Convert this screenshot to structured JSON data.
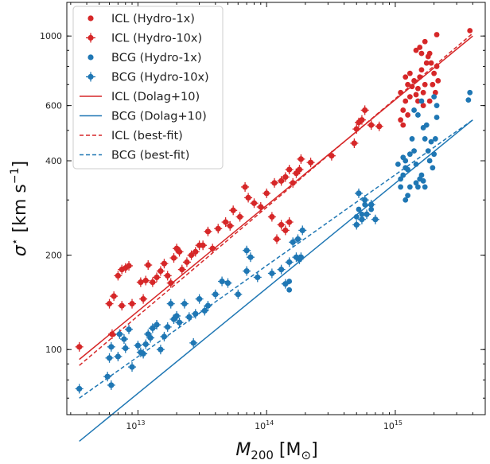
{
  "chart_data": {
    "type": "scatter",
    "x_scale": "log",
    "y_scale": "log",
    "xlim": [
      2800000000000.0,
      5000000000000000.0
    ],
    "ylim": [
      62,
      1280
    ],
    "xlabel": {
      "main": "M",
      "sub": "200",
      "unit_open": " [M",
      "unit_sym": "⊙",
      "unit_close": "]"
    },
    "ylabel": {
      "main": "σ",
      "sup": "⋆",
      "unit": "  [km s",
      "unit_sup": "−1",
      "unit_close": "]"
    },
    "x_ticks": [
      {
        "value": 10000000000000.0,
        "base": "10",
        "exp": "13"
      },
      {
        "value": 100000000000000.0,
        "base": "10",
        "exp": "14"
      },
      {
        "value": 1000000000000000.0,
        "base": "10",
        "exp": "15"
      }
    ],
    "y_ticks": [
      {
        "value": 100,
        "label": "100"
      },
      {
        "value": 200,
        "label": "200"
      },
      {
        "value": 400,
        "label": "400"
      },
      {
        "value": 600,
        "label": "600"
      },
      {
        "value": 1000,
        "label": "1000"
      }
    ],
    "legend_position": "top-left",
    "colors": {
      "icl": "#d62728",
      "bcg": "#1f77b4"
    },
    "series": [
      {
        "name": "ICL (Hydro-1x)",
        "kind": "points",
        "color": "#d62728",
        "points": [
          [
            1100000000000000.0,
            540
          ],
          [
            1150000000000000.0,
            580
          ],
          [
            1200000000000000.0,
            620
          ],
          [
            1100000000000000.0,
            660
          ],
          [
            1250000000000000.0,
            700
          ],
          [
            1300000000000000.0,
            640
          ],
          [
            1350000000000000.0,
            690
          ],
          [
            1400000000000000.0,
            720
          ],
          [
            1450000000000000.0,
            650
          ],
          [
            1500000000000000.0,
            680
          ],
          [
            1550000000000000.0,
            740
          ],
          [
            1600000000000000.0,
            780
          ],
          [
            1650000000000000.0,
            660
          ],
          [
            1700000000000000.0,
            700
          ],
          [
            1750000000000000.0,
            820
          ],
          [
            1800000000000000.0,
            860
          ],
          [
            1850000000000000.0,
            880
          ],
          [
            1900000000000000.0,
            820
          ],
          [
            1950000000000000.0,
            700
          ],
          [
            2000000000000000.0,
            760
          ],
          [
            2050000000000000.0,
            660
          ],
          [
            2100000000000000.0,
            800
          ],
          [
            1550000000000000.0,
            920
          ],
          [
            1600000000000000.0,
            880
          ],
          [
            1700000000000000.0,
            960
          ],
          [
            1450000000000000.0,
            900
          ],
          [
            2100000000000000.0,
            1010
          ],
          [
            3800000000000000.0,
            1040
          ],
          [
            1300000000000000.0,
            760
          ],
          [
            1200000000000000.0,
            740
          ],
          [
            1150000000000000.0,
            520
          ],
          [
            1250000000000000.0,
            560
          ],
          [
            1500000000000000.0,
            620
          ],
          [
            1850000000000000.0,
            620
          ],
          [
            1650000000000000.0,
            600
          ],
          [
            2150000000000000.0,
            720
          ]
        ]
      },
      {
        "name": "ICL (Hydro-10x)",
        "kind": "errorpoints",
        "color": "#d62728",
        "points": [
          [
            3500000000000.0,
            102
          ],
          [
            6000000000000.0,
            140
          ],
          [
            6500000000000.0,
            148
          ],
          [
            6300000000000.0,
            112
          ],
          [
            7500000000000.0,
            138
          ],
          [
            7000000000000.0,
            172
          ],
          [
            7500000000000.0,
            180
          ],
          [
            8000000000000.0,
            182
          ],
          [
            8500000000000.0,
            185
          ],
          [
            9000000000000.0,
            140
          ],
          [
            10500000000000.0,
            164
          ],
          [
            11500000000000.0,
            166
          ],
          [
            11000000000000.0,
            145
          ],
          [
            12000000000000.0,
            186
          ],
          [
            13000000000000.0,
            164
          ],
          [
            14000000000000.0,
            170
          ],
          [
            15000000000000.0,
            178
          ],
          [
            16000000000000.0,
            188
          ],
          [
            17000000000000.0,
            172
          ],
          [
            18000000000000.0,
            163
          ],
          [
            19000000000000.0,
            196
          ],
          [
            20000000000000.0,
            210
          ],
          [
            21000000000000.0,
            205
          ],
          [
            22000000000000.0,
            180
          ],
          [
            24000000000000.0,
            190
          ],
          [
            26000000000000.0,
            200
          ],
          [
            28000000000000.0,
            205
          ],
          [
            30000000000000.0,
            215
          ],
          [
            32000000000000.0,
            215
          ],
          [
            35000000000000.0,
            238
          ],
          [
            38000000000000.0,
            210
          ],
          [
            42000000000000.0,
            243
          ],
          [
            48000000000000.0,
            255
          ],
          [
            52000000000000.0,
            248
          ],
          [
            55000000000000.0,
            278
          ],
          [
            62000000000000.0,
            265
          ],
          [
            68000000000000.0,
            330
          ],
          [
            72000000000000.0,
            305
          ],
          [
            80000000000000.0,
            293
          ],
          [
            90000000000000.0,
            285
          ],
          [
            100000000000000.0,
            315
          ],
          [
            115000000000000.0,
            340
          ],
          [
            130000000000000.0,
            345
          ],
          [
            140000000000000.0,
            355
          ],
          [
            150000000000000.0,
            375
          ],
          [
            160000000000000.0,
            340
          ],
          [
            170000000000000.0,
            365
          ],
          [
            180000000000000.0,
            375
          ],
          [
            185000000000000.0,
            405
          ],
          [
            220000000000000.0,
            395
          ],
          [
            320000000000000.0,
            415
          ],
          [
            480000000000000.0,
            455
          ],
          [
            520000000000000.0,
            530
          ],
          [
            580000000000000.0,
            580
          ],
          [
            650000000000000.0,
            520
          ],
          [
            750000000000000.0,
            515
          ],
          [
            500000000000000.0,
            505
          ],
          [
            550000000000000.0,
            540
          ],
          [
            110000000000000.0,
            265
          ],
          [
            130000000000000.0,
            250
          ],
          [
            150000000000000.0,
            255
          ],
          [
            120000000000000.0,
            225
          ],
          [
            140000000000000.0,
            240
          ]
        ]
      },
      {
        "name": "BCG (Hydro-1x)",
        "kind": "points",
        "color": "#1f77b4",
        "points": [
          [
            500000000000000.0,
            265
          ],
          [
            520000000000000.0,
            280
          ],
          [
            550000000000000.0,
            270
          ],
          [
            580000000000000.0,
            290
          ],
          [
            650000000000000.0,
            280
          ],
          [
            1100000000000000.0,
            350
          ],
          [
            1150000000000000.0,
            360
          ],
          [
            1200000000000000.0,
            400
          ],
          [
            1250000000000000.0,
            310
          ],
          [
            1200000000000000.0,
            380
          ],
          [
            1350000000000000.0,
            470
          ],
          [
            1400000000000000.0,
            430
          ],
          [
            1450000000000000.0,
            340
          ],
          [
            1500000000000000.0,
            330
          ],
          [
            1550000000000000.0,
            350
          ],
          [
            1600000000000000.0,
            360
          ],
          [
            1700000000000000.0,
            470
          ],
          [
            1650000000000000.0,
            510
          ],
          [
            1750000000000000.0,
            520
          ],
          [
            1800000000000000.0,
            430
          ],
          [
            1850000000000000.0,
            400
          ],
          [
            1900000000000000.0,
            460
          ],
          [
            1950000000000000.0,
            380
          ],
          [
            2000000000000000.0,
            420
          ],
          [
            2050000000000000.0,
            470
          ],
          [
            2100000000000000.0,
            550
          ],
          [
            2100000000000000.0,
            600
          ],
          [
            2000000000000000.0,
            640
          ],
          [
            1600000000000000.0,
            620
          ],
          [
            1500000000000000.0,
            560
          ],
          [
            1400000000000000.0,
            580
          ],
          [
            1300000000000000.0,
            420
          ],
          [
            1450000000000000.0,
            390
          ],
          [
            1300000000000000.0,
            330
          ],
          [
            150000000000000.0,
            155
          ],
          [
            150000000000000.0,
            165
          ],
          [
            1700000000000000.0,
            330
          ],
          [
            1650000000000000.0,
            345
          ],
          [
            1250000000000000.0,
            375
          ],
          [
            3800000000000000.0,
            660
          ],
          [
            3700000000000000.0,
            625
          ],
          [
            1050000000000000.0,
            390
          ],
          [
            1100000000000000.0,
            330
          ],
          [
            1150000000000000.0,
            410
          ],
          [
            1200000000000000.0,
            300
          ]
        ]
      },
      {
        "name": "BCG (Hydro-10x)",
        "kind": "errorpoints",
        "color": "#1f77b4",
        "points": [
          [
            3500000000000.0,
            75
          ],
          [
            5800000000000.0,
            82
          ],
          [
            6200000000000.0,
            77
          ],
          [
            6000000000000.0,
            94
          ],
          [
            6200000000000.0,
            102
          ],
          [
            7000000000000.0,
            95
          ],
          [
            7200000000000.0,
            112
          ],
          [
            7800000000000.0,
            108
          ],
          [
            8000000000000.0,
            101
          ],
          [
            8500000000000.0,
            116
          ],
          [
            9000000000000.0,
            88
          ],
          [
            10000000000000.0,
            103
          ],
          [
            10500000000000.0,
            98
          ],
          [
            11000000000000.0,
            97
          ],
          [
            11500000000000.0,
            104
          ],
          [
            12000000000000.0,
            112
          ],
          [
            12500000000000.0,
            109
          ],
          [
            13000000000000.0,
            117
          ],
          [
            14000000000000.0,
            120
          ],
          [
            15000000000000.0,
            100
          ],
          [
            16000000000000.0,
            110
          ],
          [
            17000000000000.0,
            118
          ],
          [
            18000000000000.0,
            140
          ],
          [
            19000000000000.0,
            125
          ],
          [
            20000000000000.0,
            128
          ],
          [
            21000000000000.0,
            122
          ],
          [
            23000000000000.0,
            140
          ],
          [
            25000000000000.0,
            127
          ],
          [
            27000000000000.0,
            105
          ],
          [
            28000000000000.0,
            130
          ],
          [
            30000000000000.0,
            145
          ],
          [
            33000000000000.0,
            133
          ],
          [
            35000000000000.0,
            138
          ],
          [
            40000000000000.0,
            150
          ],
          [
            45000000000000.0,
            165
          ],
          [
            50000000000000.0,
            163
          ],
          [
            60000000000000.0,
            150
          ],
          [
            70000000000000.0,
            178
          ],
          [
            70000000000000.0,
            207
          ],
          [
            75000000000000.0,
            197
          ],
          [
            85000000000000.0,
            170
          ],
          [
            110000000000000.0,
            175
          ],
          [
            130000000000000.0,
            180
          ],
          [
            140000000000000.0,
            162
          ],
          [
            150000000000000.0,
            190
          ],
          [
            170000000000000.0,
            197
          ],
          [
            180000000000000.0,
            194
          ],
          [
            185000000000000.0,
            197
          ],
          [
            160000000000000.0,
            220
          ],
          [
            175000000000000.0,
            225
          ],
          [
            190000000000000.0,
            240
          ],
          [
            500000000000000.0,
            250
          ],
          [
            550000000000000.0,
            260
          ],
          [
            600000000000000.0,
            270
          ],
          [
            700000000000000.0,
            260
          ],
          [
            650000000000000.0,
            290
          ],
          [
            520000000000000.0,
            315
          ],
          [
            580000000000000.0,
            300
          ]
        ]
      },
      {
        "name": "ICL (Dolag+10)",
        "kind": "line",
        "style": "solid",
        "color": "#d62728",
        "x": [
          3500000000000.0,
          4000000000000000.0
        ],
        "y": [
          93,
          1000
        ]
      },
      {
        "name": "BCG (Dolag+10)",
        "kind": "line",
        "style": "solid",
        "color": "#1f77b4",
        "x": [
          3500000000000.0,
          4000000000000000.0
        ],
        "y": [
          51,
          540
        ]
      },
      {
        "name": "ICL (best-fit)",
        "kind": "line",
        "style": "dashed",
        "color": "#d62728",
        "x": [
          3500000000000.0,
          4000000000000000.0
        ],
        "y": [
          89,
          1020
        ]
      },
      {
        "name": "BCG (best-fit)",
        "kind": "line",
        "style": "dashed",
        "color": "#1f77b4",
        "x": [
          3500000000000.0,
          4000000000000000.0
        ],
        "y": [
          70,
          540
        ]
      }
    ]
  }
}
